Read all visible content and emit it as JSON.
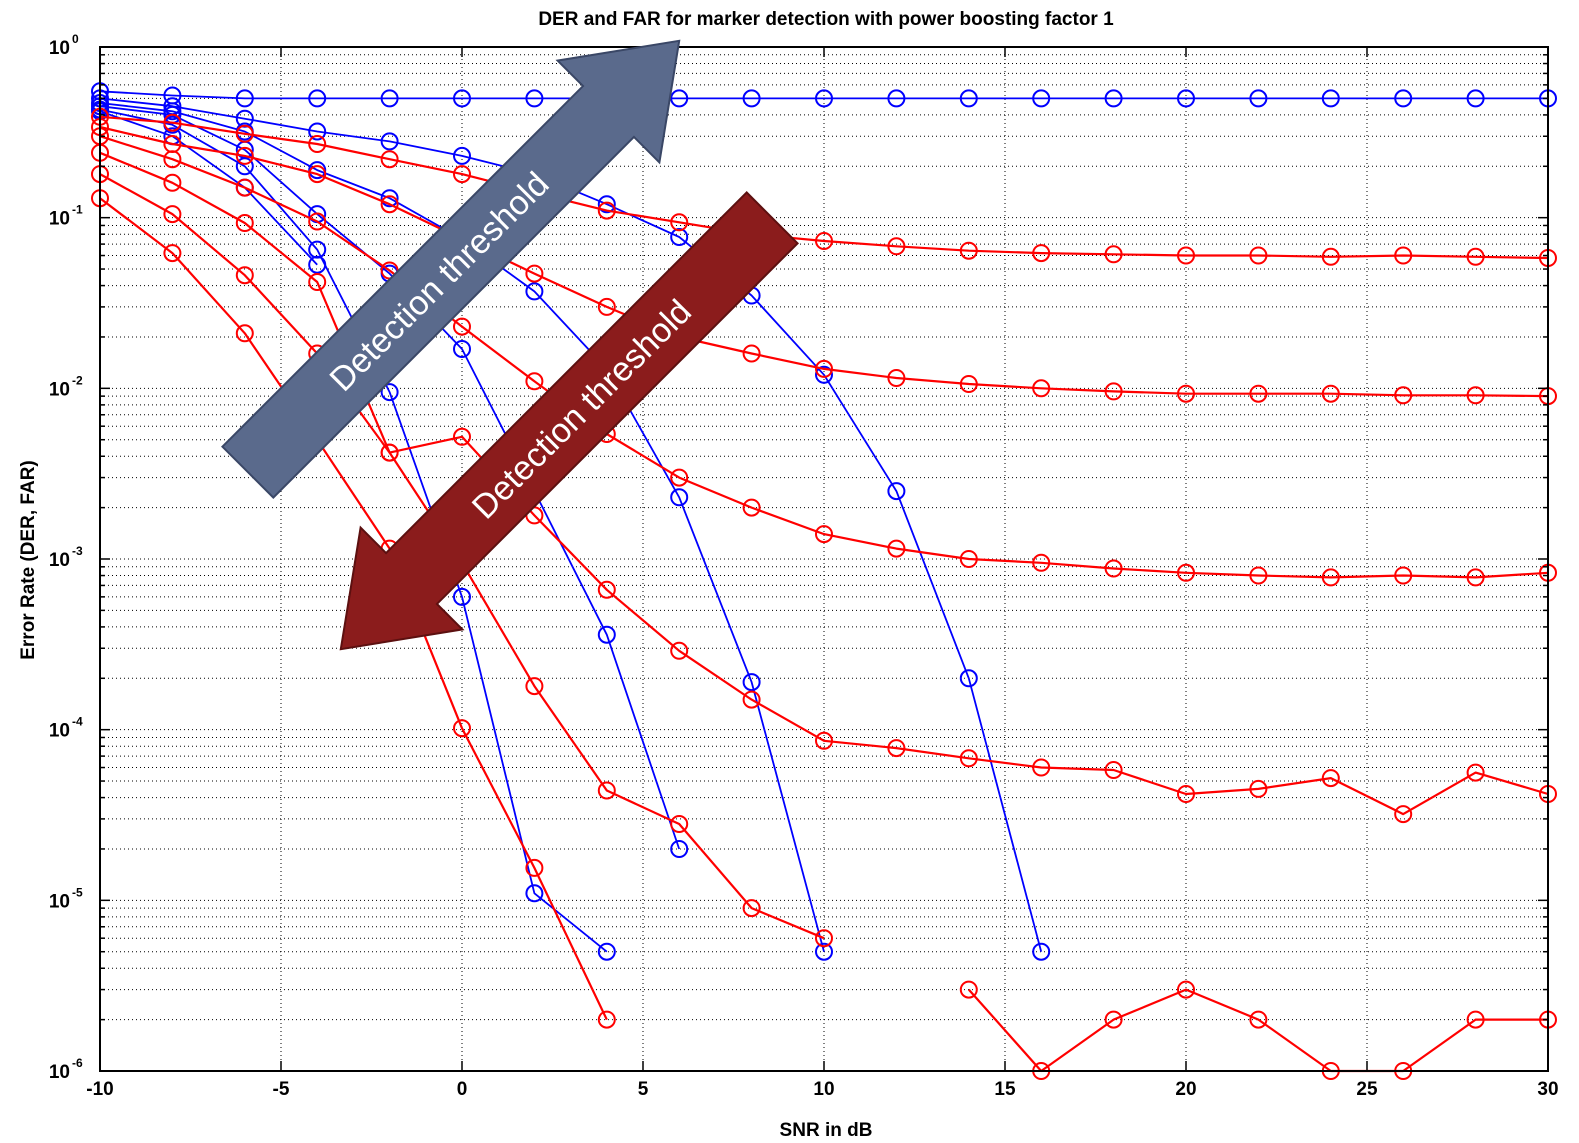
{
  "chart_data": {
    "type": "line",
    "title": "DER and FAR for marker detection with power boosting factor 1",
    "xlabel": "SNR in dB",
    "ylabel": "Error Rate (DER, FAR)",
    "xlim": [
      -10,
      30
    ],
    "ylim": [
      1e-06,
      1
    ],
    "yscale": "log",
    "grid": true,
    "x_ticks": [
      "-10",
      "-5",
      "0",
      "5",
      "10",
      "15",
      "20",
      "25",
      "30"
    ],
    "y_ticks": [
      {
        "base": "10",
        "exp": "-6"
      },
      {
        "base": "10",
        "exp": "-5"
      },
      {
        "base": "10",
        "exp": "-4"
      },
      {
        "base": "10",
        "exp": "-3"
      },
      {
        "base": "10",
        "exp": "-2"
      },
      {
        "base": "10",
        "exp": "-1"
      },
      {
        "base": "10",
        "exp": "0"
      }
    ],
    "colors": {
      "der": "#0000ff",
      "far": "#ff0000",
      "arrow_up": "#5a6a8c",
      "arrow_down": "#8b1c1c"
    },
    "annotations": [
      {
        "text": "Detection threshold",
        "direction": "up-right",
        "color": "#5a6a8c"
      },
      {
        "text": "Detection threshold",
        "direction": "down-left",
        "color": "#8b1c1c"
      }
    ],
    "series": [
      {
        "group": "DER",
        "x": [
          -10,
          -8,
          -6,
          -4,
          -2,
          0,
          2,
          4,
          6,
          8,
          10,
          12,
          14,
          16,
          18,
          20,
          22,
          24,
          26,
          28,
          30
        ],
        "values": [
          0.55,
          0.52,
          0.5,
          0.5,
          0.5,
          0.5,
          0.5,
          0.5,
          0.5,
          0.5,
          0.5,
          0.5,
          0.5,
          0.5,
          0.5,
          0.5,
          0.5,
          0.5,
          0.5,
          0.5,
          0.5
        ]
      },
      {
        "group": "DER",
        "x": [
          -10,
          -8,
          -6,
          -4,
          -2,
          0,
          2,
          4,
          6,
          8,
          10,
          12,
          14,
          16
        ],
        "values": [
          0.5,
          0.45,
          0.38,
          0.32,
          0.28,
          0.23,
          0.18,
          0.12,
          0.077,
          0.035,
          0.012,
          0.0025,
          0.0002,
          5e-06
        ]
      },
      {
        "group": "DER",
        "x": [
          -10,
          -8,
          -6,
          -4,
          -2,
          0,
          2,
          4,
          6,
          8,
          10
        ],
        "values": [
          0.47,
          0.42,
          0.32,
          0.19,
          0.13,
          0.075,
          0.037,
          0.013,
          0.0023,
          0.00019,
          5e-06
        ]
      },
      {
        "group": "DER",
        "x": [
          -10,
          -8,
          -6,
          -4,
          -2,
          0,
          2,
          4,
          6
        ],
        "values": [
          0.45,
          0.4,
          0.25,
          0.105,
          0.047,
          0.017,
          0.0025,
          0.00036,
          2e-05
        ]
      },
      {
        "group": "DER",
        "x": [
          -10,
          -8,
          -6,
          -4,
          -2,
          0,
          2,
          4
        ],
        "values": [
          0.43,
          0.35,
          0.2,
          0.065,
          0.0095,
          0.0006,
          1.1e-05,
          5e-06
        ]
      },
      {
        "group": "DER",
        "x": [
          -10,
          -8,
          -6,
          -4
        ],
        "values": [
          0.42,
          0.3,
          0.15,
          0.053
        ]
      },
      {
        "group": "FAR",
        "x": [
          -10,
          -8,
          -6,
          -4,
          -2,
          0,
          2,
          4,
          6,
          8,
          10,
          12,
          14,
          16,
          18,
          20,
          22,
          24,
          26,
          28,
          30
        ],
        "values": [
          0.39,
          0.36,
          0.31,
          0.27,
          0.22,
          0.18,
          0.14,
          0.11,
          0.094,
          0.08,
          0.073,
          0.068,
          0.064,
          0.062,
          0.061,
          0.06,
          0.06,
          0.059,
          0.06,
          0.059,
          0.058
        ]
      },
      {
        "group": "FAR",
        "x": [
          -10,
          -8,
          -6,
          -4,
          -2,
          0,
          2,
          4,
          6,
          8,
          10,
          12,
          14,
          16,
          18,
          20,
          22,
          24,
          26,
          28,
          30
        ],
        "values": [
          0.34,
          0.27,
          0.23,
          0.18,
          0.12,
          0.075,
          0.047,
          0.03,
          0.02,
          0.016,
          0.013,
          0.0115,
          0.0106,
          0.01,
          0.0096,
          0.0093,
          0.0093,
          0.0093,
          0.0091,
          0.0091,
          0.009
        ]
      },
      {
        "group": "FAR",
        "x": [
          -10,
          -8,
          -6,
          -4,
          -2,
          0,
          2,
          4,
          6,
          8,
          10,
          12,
          14,
          16,
          18,
          20,
          22,
          24,
          26,
          28,
          30
        ],
        "values": [
          0.3,
          0.22,
          0.15,
          0.095,
          0.049,
          0.023,
          0.011,
          0.0054,
          0.003,
          0.002,
          0.0014,
          0.00115,
          0.001,
          0.00095,
          0.00088,
          0.00083,
          0.0008,
          0.00078,
          0.0008,
          0.00078,
          0.00083
        ]
      },
      {
        "group": "FAR",
        "x": [
          -10,
          -8,
          -6,
          -4,
          -2,
          0,
          2,
          4,
          6,
          8,
          10,
          12,
          14,
          16,
          18,
          20,
          22,
          24,
          26,
          28,
          30
        ],
        "values": [
          0.24,
          0.16,
          0.093,
          0.042,
          0.0042,
          0.0052,
          0.0018,
          0.00066,
          0.00029,
          0.00015,
          8.6e-05,
          7.8e-05,
          6.8e-05,
          6e-05,
          5.8e-05,
          4.2e-05,
          4.5e-05,
          5.2e-05,
          3.2e-05,
          5.6e-05,
          4.2e-05
        ]
      },
      {
        "group": "FAR",
        "x": [
          -10,
          -8,
          -6,
          -4,
          -2,
          0,
          2,
          4,
          6,
          8,
          10
        ],
        "values": [
          0.18,
          0.105,
          0.046,
          0.016,
          0.0042,
          0.00095,
          0.00018,
          4.4e-05,
          2.8e-05,
          9e-06,
          6e-06
        ]
      },
      {
        "group": "FAR",
        "x": [
          -10,
          -8,
          -6,
          -4,
          -2,
          0,
          2,
          4
        ],
        "values": [
          0.13,
          0.062,
          0.021,
          0.005,
          0.00115,
          0.000102,
          1.55e-05,
          2e-06
        ]
      },
      {
        "group": "FAR",
        "x": [
          14,
          16,
          18,
          20,
          22,
          24,
          26,
          28,
          30
        ],
        "values": [
          3e-06,
          1e-06,
          2e-06,
          3e-06,
          2e-06,
          1e-06,
          1e-06,
          2e-06,
          2e-06
        ]
      }
    ]
  }
}
